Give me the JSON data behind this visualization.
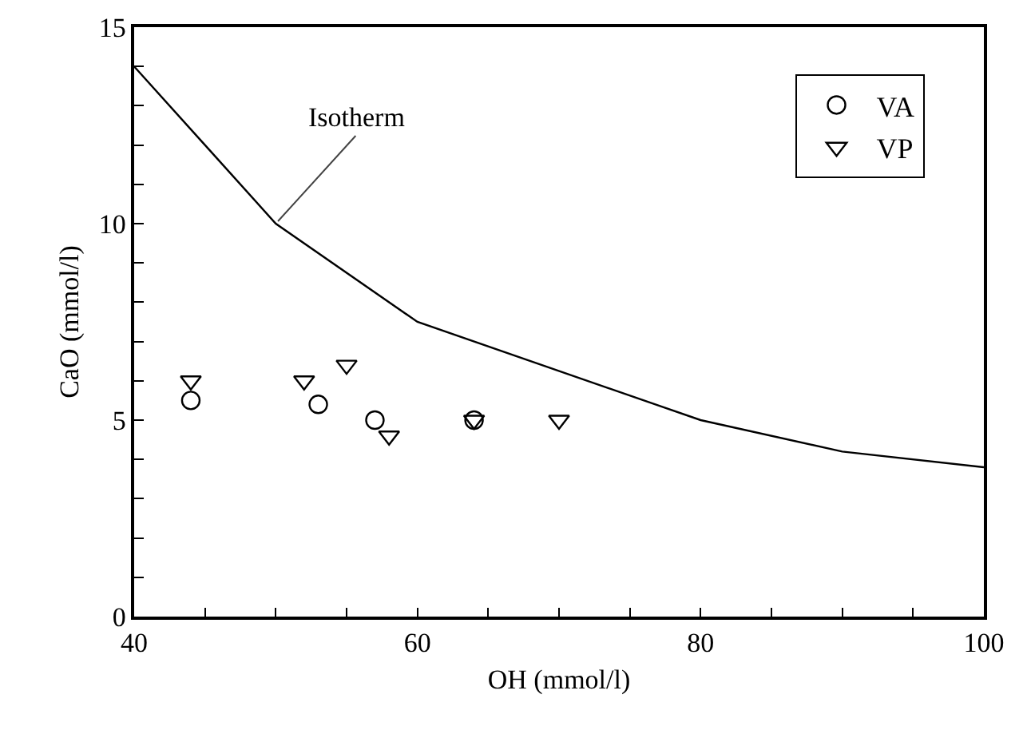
{
  "chart_data": {
    "type": "scatter",
    "xlabel": "OH (mmol/l)",
    "ylabel": "CaO (mmol/l)",
    "xlim": [
      40,
      100
    ],
    "ylim": [
      0,
      15
    ],
    "xticks": [
      40,
      {
        "value": 45,
        "label": null
      },
      {
        "value": 50,
        "label": null
      },
      {
        "value": 55,
        "label": null
      },
      60,
      {
        "value": 65,
        "label": null
      },
      {
        "value": 70,
        "label": null
      },
      {
        "value": 75,
        "label": null
      },
      80,
      {
        "value": 85,
        "label": null
      },
      {
        "value": 90,
        "label": null
      },
      {
        "value": 95,
        "label": null
      },
      100
    ],
    "yticks": [
      0,
      {
        "value": 1,
        "label": null
      },
      {
        "value": 2,
        "label": null
      },
      {
        "value": 3,
        "label": null
      },
      {
        "value": 4,
        "label": null
      },
      5,
      {
        "value": 6,
        "label": null
      },
      {
        "value": 7,
        "label": null
      },
      {
        "value": 8,
        "label": null
      },
      {
        "value": 9,
        "label": null
      },
      10,
      {
        "value": 11,
        "label": null
      },
      {
        "value": 12,
        "label": null
      },
      {
        "value": 13,
        "label": null
      },
      {
        "value": 14,
        "label": null
      },
      15
    ],
    "grid": false,
    "legend": "top right",
    "series": [
      {
        "type": "line",
        "color": "#000000",
        "marker": "none",
        "line_style": "solid",
        "x": [
          40,
          50,
          60,
          80,
          90,
          100
        ],
        "values": [
          14,
          10,
          7.5,
          5,
          4.2,
          3.8
        ]
      },
      {
        "name": "VA",
        "color": "#000000",
        "marker": "circle",
        "x": [
          44,
          53,
          57,
          64
        ],
        "values": [
          5.5,
          5.4,
          5.0,
          5.0
        ]
      },
      {
        "name": "VP",
        "color": "#000000",
        "marker": "triangle",
        "x": [
          44,
          52,
          55,
          58,
          64,
          70
        ],
        "values": [
          6.0,
          6.0,
          6.4,
          4.6,
          5.0,
          5.0
        ]
      }
    ],
    "annotations": [
      {
        "text": "Isotherm",
        "x": 50,
        "y": 10
      }
    ]
  }
}
